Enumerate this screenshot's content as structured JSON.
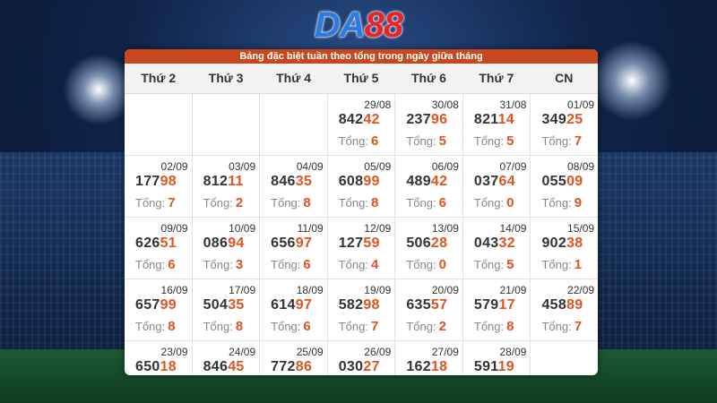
{
  "brand": {
    "part1": "DA",
    "part2": "88"
  },
  "panel": {
    "title": "Bảng đặc biệt tuần theo tổng trong ngày giữa tháng"
  },
  "weekdays": [
    "Thứ 2",
    "Thứ 3",
    "Thứ 4",
    "Thứ 5",
    "Thứ 6",
    "Thứ 7",
    "CN"
  ],
  "sum_label": "Tổng:",
  "weeks": [
    [
      null,
      null,
      null,
      {
        "date": "29/08",
        "n1": "842",
        "n2": "42",
        "sum": "6"
      },
      {
        "date": "30/08",
        "n1": "237",
        "n2": "96",
        "sum": "5"
      },
      {
        "date": "31/08",
        "n1": "821",
        "n2": "14",
        "sum": "5"
      },
      {
        "date": "01/09",
        "n1": "349",
        "n2": "25",
        "sum": "7"
      }
    ],
    [
      {
        "date": "02/09",
        "n1": "177",
        "n2": "98",
        "sum": "7"
      },
      {
        "date": "03/09",
        "n1": "812",
        "n2": "11",
        "sum": "2"
      },
      {
        "date": "04/09",
        "n1": "846",
        "n2": "35",
        "sum": "8"
      },
      {
        "date": "05/09",
        "n1": "608",
        "n2": "99",
        "sum": "8"
      },
      {
        "date": "06/09",
        "n1": "489",
        "n2": "42",
        "sum": "6"
      },
      {
        "date": "07/09",
        "n1": "037",
        "n2": "64",
        "sum": "0"
      },
      {
        "date": "08/09",
        "n1": "055",
        "n2": "09",
        "sum": "9"
      }
    ],
    [
      {
        "date": "09/09",
        "n1": "626",
        "n2": "51",
        "sum": "6"
      },
      {
        "date": "10/09",
        "n1": "086",
        "n2": "94",
        "sum": "3"
      },
      {
        "date": "11/09",
        "n1": "656",
        "n2": "97",
        "sum": "6"
      },
      {
        "date": "12/09",
        "n1": "127",
        "n2": "59",
        "sum": "4"
      },
      {
        "date": "13/09",
        "n1": "506",
        "n2": "28",
        "sum": "0"
      },
      {
        "date": "14/09",
        "n1": "043",
        "n2": "32",
        "sum": "5"
      },
      {
        "date": "15/09",
        "n1": "902",
        "n2": "38",
        "sum": "1"
      }
    ],
    [
      {
        "date": "16/09",
        "n1": "657",
        "n2": "99",
        "sum": "8"
      },
      {
        "date": "17/09",
        "n1": "504",
        "n2": "35",
        "sum": "8"
      },
      {
        "date": "18/09",
        "n1": "614",
        "n2": "97",
        "sum": "6"
      },
      {
        "date": "19/09",
        "n1": "582",
        "n2": "98",
        "sum": "7"
      },
      {
        "date": "20/09",
        "n1": "635",
        "n2": "57",
        "sum": "2"
      },
      {
        "date": "21/09",
        "n1": "579",
        "n2": "17",
        "sum": "8"
      },
      {
        "date": "22/09",
        "n1": "458",
        "n2": "89",
        "sum": "7"
      }
    ],
    [
      {
        "date": "23/09",
        "n1": "650",
        "n2": "18",
        "sum": ""
      },
      {
        "date": "24/09",
        "n1": "846",
        "n2": "45",
        "sum": ""
      },
      {
        "date": "25/09",
        "n1": "772",
        "n2": "86",
        "sum": ""
      },
      {
        "date": "26/09",
        "n1": "030",
        "n2": "27",
        "sum": ""
      },
      {
        "date": "27/09",
        "n1": "162",
        "n2": "18",
        "sum": ""
      },
      {
        "date": "28/09",
        "n1": "591",
        "n2": "19",
        "sum": ""
      },
      null
    ]
  ]
}
